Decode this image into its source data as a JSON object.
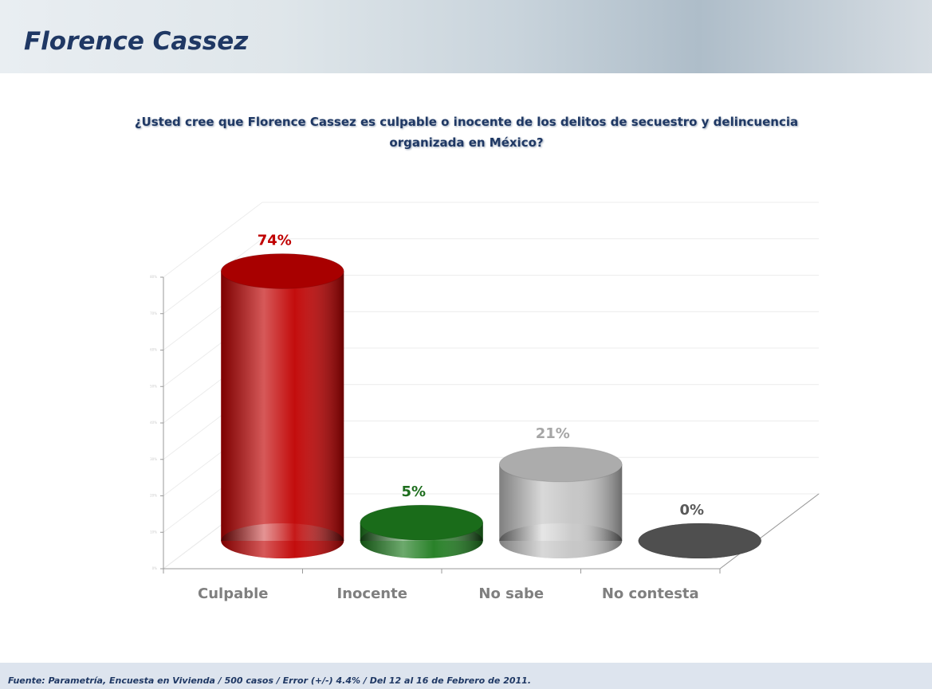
{
  "header": {
    "title": "Florence Cassez"
  },
  "footer": {
    "source": "Fuente: Parametría, Encuesta en Vivienda / 500 casos / Error (+/-) 4.4% / Del 12 al 16 de Febrero de 2011."
  },
  "chart_data": {
    "type": "bar",
    "title": "¿Usted cree que Florence Cassez es culpable o inocente de los delitos de secuestro y delincuencia organizada en México?",
    "categories": [
      "Culpable",
      "Inocente",
      "No sabe",
      "No contesta"
    ],
    "values": [
      74,
      5,
      21,
      0
    ],
    "value_labels": [
      "74%",
      "5%",
      "21%",
      "0%"
    ],
    "colors": [
      "#c00000",
      "#1e7b1e",
      "#c4c4c4",
      "#5a5a5a"
    ],
    "label_colors": [
      "#c00000",
      "#1e6e1e",
      "#a6a6a6",
      "#595959"
    ],
    "ylim": [
      0,
      80
    ],
    "yticks": [
      {
        "value": 0,
        "label": "0%"
      },
      {
        "value": 10,
        "label": "10%"
      },
      {
        "value": 20,
        "label": "20%"
      },
      {
        "value": 30,
        "label": "30%"
      },
      {
        "value": 40,
        "label": "40%"
      },
      {
        "value": 50,
        "label": "50%"
      },
      {
        "value": 60,
        "label": "60%"
      },
      {
        "value": 70,
        "label": "70%"
      },
      {
        "value": 80,
        "label": "80%"
      }
    ],
    "grid": true
  }
}
